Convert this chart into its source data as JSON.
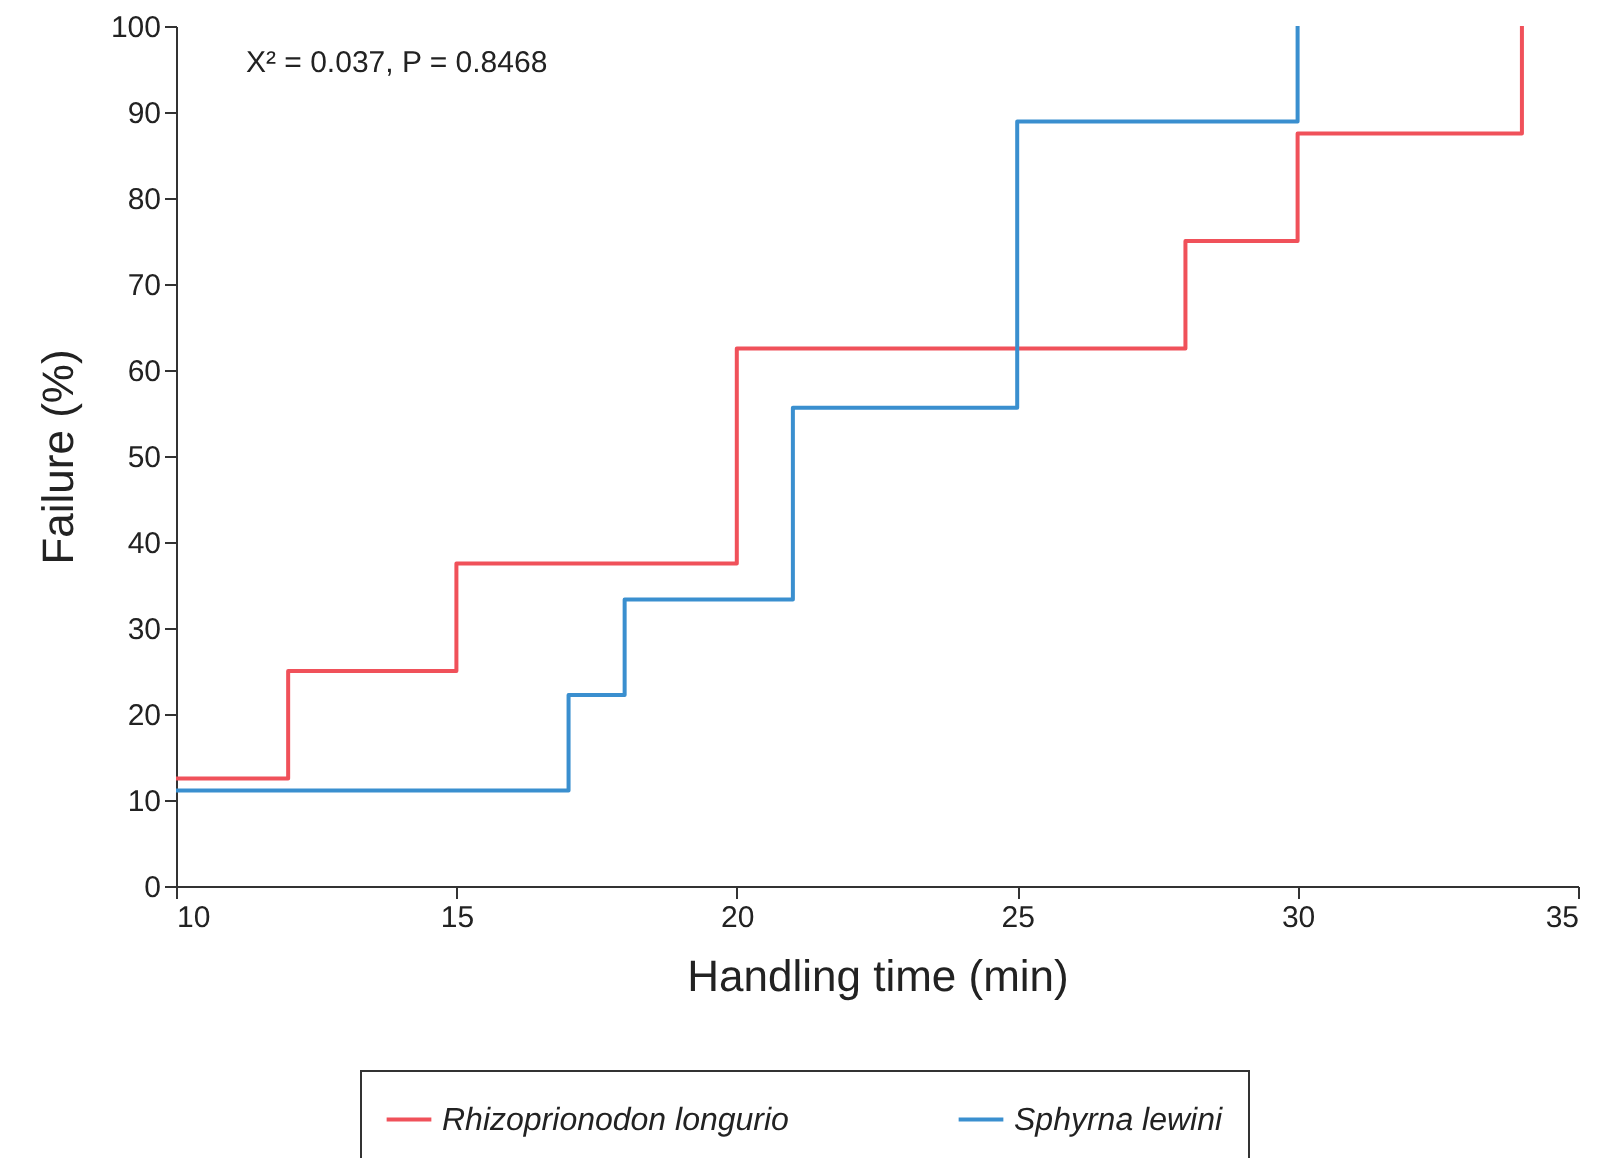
{
  "chart_data": {
    "type": "step",
    "xlabel": "Handling time (min)",
    "ylabel": "Failure  (%)",
    "annotations": [
      "X² = 0.037, P = 0.8468"
    ],
    "xlim": [
      10,
      35
    ],
    "xticks": [
      10,
      15,
      20,
      25,
      30,
      35
    ],
    "ylim": [
      0,
      100
    ],
    "yticks": [
      0,
      10,
      20,
      30,
      40,
      50,
      60,
      70,
      80,
      90,
      100
    ],
    "grid": false,
    "legend": "bottom",
    "marker": "none",
    "line_style": "solid",
    "series": [
      {
        "name": "Rhizoprionodon longurio",
        "color": "#f0515a",
        "x": [
          10,
          12,
          15,
          20,
          28,
          30,
          34
        ],
        "values": [
          12.5,
          25,
          37.5,
          62.5,
          75,
          87.5,
          100
        ]
      },
      {
        "name": "Sphyrna lewini",
        "color": "#3a8fcf",
        "x": [
          10,
          17,
          18,
          21,
          25,
          30
        ],
        "values": [
          11.1,
          22.2,
          33.3,
          55.6,
          88.9,
          100
        ]
      }
    ]
  }
}
